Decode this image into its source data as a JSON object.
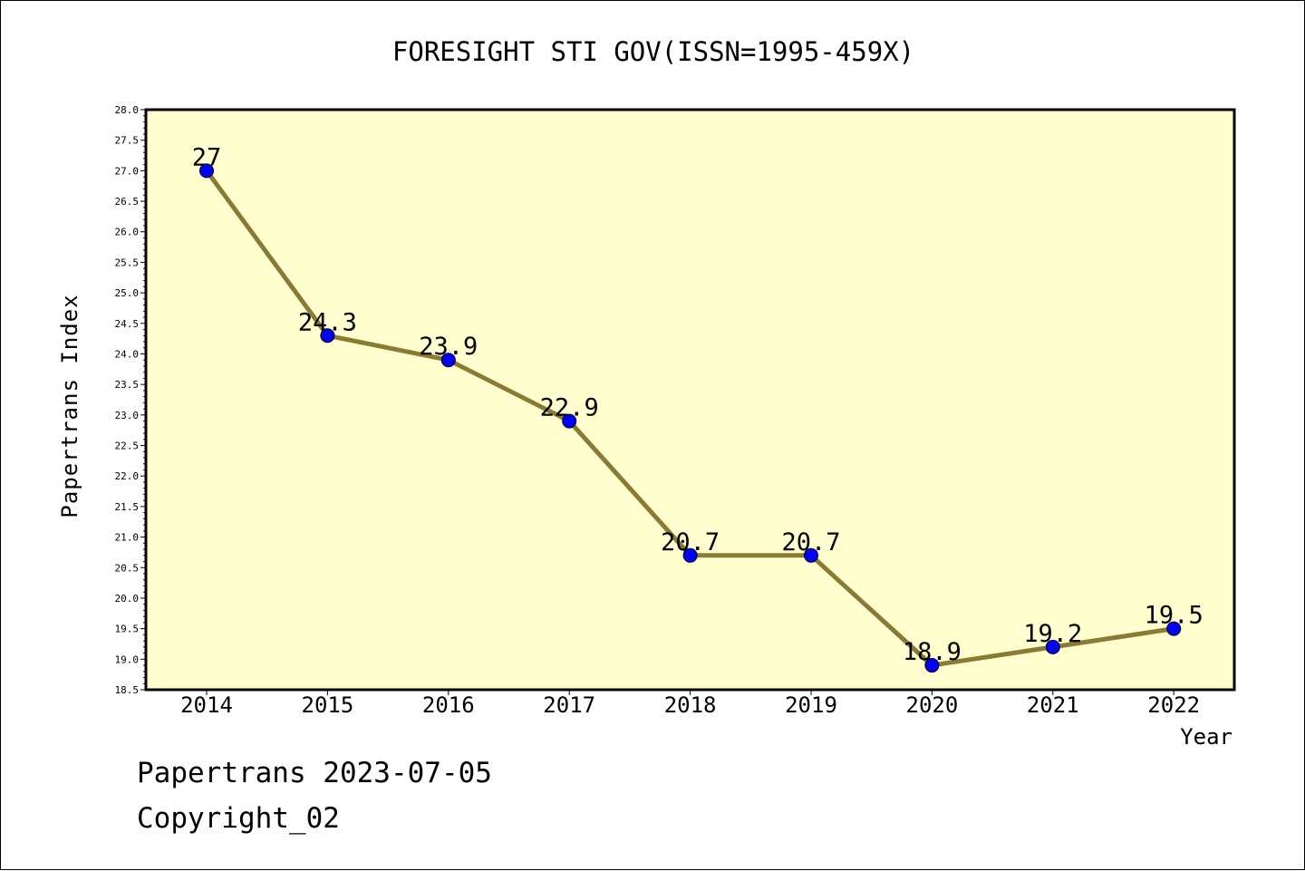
{
  "chart_data": {
    "type": "line",
    "title": "FORESIGHT STI GOV(ISSN=1995-459X)",
    "xlabel": "Year",
    "ylabel": "Papertrans Index",
    "categories": [
      "2014",
      "2015",
      "2016",
      "2017",
      "2018",
      "2019",
      "2020",
      "2021",
      "2022"
    ],
    "values": [
      27,
      24.3,
      23.9,
      22.9,
      20.7,
      20.7,
      18.9,
      19.2,
      19.5
    ],
    "data_labels": [
      "27",
      "24.3",
      "23.9",
      "22.9",
      "20.7",
      "20.7",
      "18.9",
      "19.2",
      "19.5"
    ],
    "ylim": [
      18.5,
      28.0
    ],
    "ytick_step": 0.5,
    "grid": false,
    "legend": "none",
    "colors": {
      "plot_background": "#ffffd0",
      "line": "#8b7a34",
      "marker": "#0000ff",
      "axis": "#000000"
    }
  },
  "footer": {
    "line1": "Papertrans 2023-07-05",
    "line2": "Copyright_02"
  }
}
